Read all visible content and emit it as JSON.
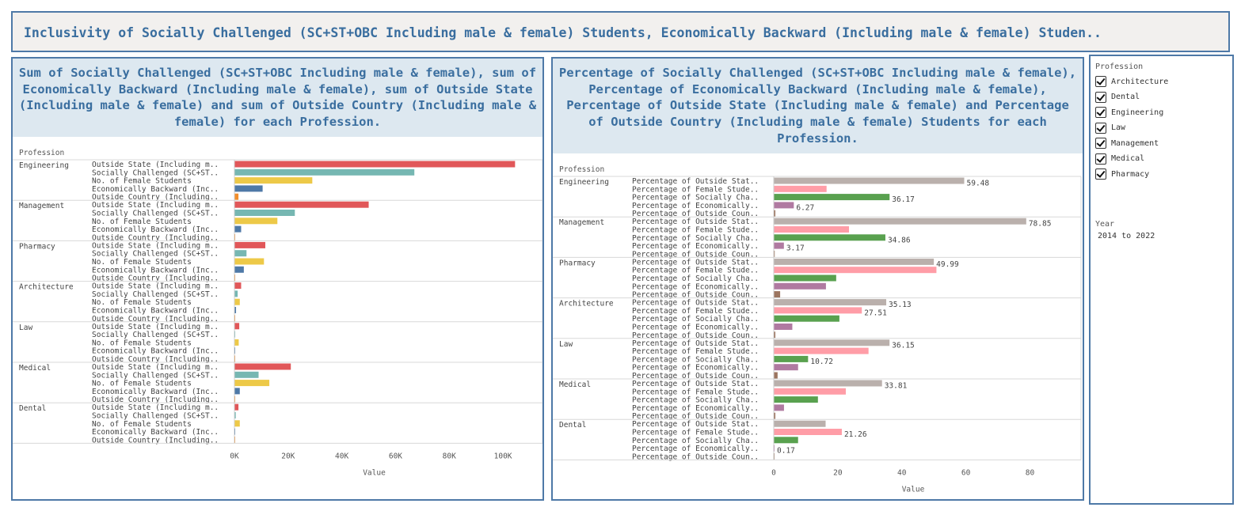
{
  "dashboard": {
    "title": "Inclusivity of Socially Challenged (SC+ST+OBC Including male & female) Students, Economically Backward (Including male & female) Studen.."
  },
  "filters": {
    "profession_label": "Profession",
    "professions": [
      "Architecture",
      "Dental",
      "Engineering",
      "Law",
      "Management",
      "Medical",
      "Pharmacy"
    ],
    "year_label": "Year",
    "year_value": "2014 to 2022"
  },
  "chart_data": [
    {
      "type": "bar",
      "title": "Sum of Socially Challenged (SC+ST+OBC Including male & female), sum of Economically Backward (Including male & female), sum of Outside State (Including male & female) and sum of Outside Country (Including male & female) for each Profession.",
      "row_header": "Profession",
      "xlabel": "Value",
      "xlim": [
        0,
        110000
      ],
      "ticks": [
        0,
        20000,
        40000,
        60000,
        80000,
        100000
      ],
      "tick_labels": [
        "0K",
        "20K",
        "40K",
        "60K",
        "80K",
        "100K"
      ],
      "measures": [
        {
          "label": "Outside State (Including m..",
          "color": "#e15759"
        },
        {
          "label": "Socially Challenged (SC+ST..",
          "color": "#76b7b2"
        },
        {
          "label": "No. of Female Students",
          "color": "#edc948"
        },
        {
          "label": "Economically Backward (Inc..",
          "color": "#4e79a7"
        },
        {
          "label": "Outside Country (Including..",
          "color": "#f28e2b"
        }
      ],
      "categories": [
        "Engineering",
        "Management",
        "Pharmacy",
        "Architecture",
        "Law",
        "Medical",
        "Dental"
      ],
      "values": [
        [
          104500,
          67000,
          29000,
          10500,
          1500
        ],
        [
          50000,
          22500,
          16000,
          2500,
          200
        ],
        [
          11500,
          4500,
          11000,
          3500,
          300
        ],
        [
          2500,
          1200,
          2000,
          600,
          100
        ],
        [
          1800,
          300,
          1600,
          150,
          50
        ],
        [
          21000,
          9000,
          13000,
          2000,
          300
        ],
        [
          1500,
          500,
          2000,
          200,
          50
        ]
      ]
    },
    {
      "type": "bar",
      "title": "Percentage of Socially Challenged (SC+ST+OBC Including male & female), Percentage of Economically Backward (Including male & female), Percentage of Outside State (Including male & female) and Percentage of Outside Country (Including male & female) Students for each Profession.",
      "row_header": "Profession",
      "xlabel": "Value",
      "xlim": [
        0,
        92
      ],
      "ticks": [
        0,
        20,
        40,
        60,
        80
      ],
      "tick_labels": [
        "0",
        "20",
        "40",
        "60",
        "80"
      ],
      "measures": [
        {
          "label": "Percentage of Outside Stat..",
          "color": "#bab0ac"
        },
        {
          "label": "Percentage of Female Stude..",
          "color": "#ff9da7"
        },
        {
          "label": "Percentage of Socially Cha..",
          "color": "#59a14f"
        },
        {
          "label": "Percentage of Economically..",
          "color": "#b07aa1"
        },
        {
          "label": "Percentage of Outside Coun..",
          "color": "#9c755f"
        }
      ],
      "categories": [
        "Engineering",
        "Management",
        "Pharmacy",
        "Architecture",
        "Law",
        "Medical",
        "Dental"
      ],
      "values": [
        [
          59.48,
          16.5,
          36.17,
          6.27,
          0.5
        ],
        [
          78.85,
          23.5,
          34.86,
          3.17,
          0.3
        ],
        [
          49.99,
          50.8,
          19.5,
          16.3,
          2.0
        ],
        [
          35.13,
          27.51,
          20.5,
          5.8,
          0.5
        ],
        [
          36.15,
          29.6,
          10.72,
          7.6,
          1.2
        ],
        [
          33.81,
          22.5,
          13.8,
          3.2,
          0.5
        ],
        [
          16.2,
          21.26,
          7.6,
          0.17,
          0.2
        ]
      ],
      "data_labels": [
        [
          "59.48",
          "",
          "36.17",
          "6.27",
          ""
        ],
        [
          "78.85",
          "",
          "34.86",
          "3.17",
          ""
        ],
        [
          "49.99",
          "",
          "",
          "",
          ""
        ],
        [
          "35.13",
          "27.51",
          "",
          "",
          ""
        ],
        [
          "36.15",
          "",
          "10.72",
          "",
          ""
        ],
        [
          "33.81",
          "",
          "",
          "",
          ""
        ],
        [
          "",
          "21.26",
          "",
          "0.17",
          ""
        ]
      ]
    }
  ]
}
